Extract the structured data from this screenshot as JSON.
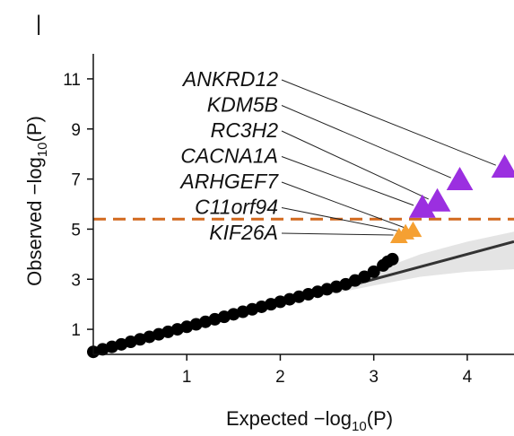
{
  "panel_letter": "|",
  "chart_data": {
    "type": "scatter",
    "title": "",
    "xlabel": {
      "main": "Expected  −log",
      "sub": "10",
      "tail": "(P)"
    },
    "ylabel": {
      "main": "Observed  −log",
      "sub": "10",
      "tail": "(P)"
    },
    "xlim": [
      0,
      4.5
    ],
    "ylim": [
      0,
      12
    ],
    "x_ticks": [
      1,
      2,
      3,
      4
    ],
    "y_ticks": [
      1,
      3,
      5,
      7,
      9,
      11
    ],
    "grid": false,
    "significance_threshold": 5.4,
    "colors": {
      "null_points": "#000000",
      "suggestive": "#f5a032",
      "significant": "#9b2fe0",
      "threshold_line": "#d2691e",
      "expected_line": "#333333",
      "confidence_band": "#e4e4e4"
    },
    "labeled_genes": [
      {
        "name": "ANKRD12",
        "x": 4.4,
        "y": 7.45,
        "group": "significant"
      },
      {
        "name": "KDM5B",
        "x": 3.92,
        "y": 6.95,
        "group": "significant"
      },
      {
        "name": "RC3H2",
        "x": 3.68,
        "y": 6.1,
        "group": "significant"
      },
      {
        "name": "CACNA1A",
        "x": 3.52,
        "y": 5.85,
        "group": "significant"
      },
      {
        "name": "ARHGEF7",
        "x": 3.42,
        "y": 4.95,
        "group": "suggestive"
      },
      {
        "name": "C11orf94",
        "x": 3.34,
        "y": 4.85,
        "group": "suggestive"
      },
      {
        "name": "KIF26A",
        "x": 3.27,
        "y": 4.7,
        "group": "suggestive"
      }
    ],
    "null_points": [
      [
        0.0,
        0.1
      ],
      [
        0.1,
        0.2
      ],
      [
        0.2,
        0.3
      ],
      [
        0.3,
        0.4
      ],
      [
        0.4,
        0.5
      ],
      [
        0.5,
        0.6
      ],
      [
        0.6,
        0.7
      ],
      [
        0.7,
        0.8
      ],
      [
        0.8,
        0.9
      ],
      [
        0.9,
        1.0
      ],
      [
        1.0,
        1.1
      ],
      [
        1.1,
        1.2
      ],
      [
        1.2,
        1.3
      ],
      [
        1.3,
        1.4
      ],
      [
        1.4,
        1.5
      ],
      [
        1.5,
        1.6
      ],
      [
        1.6,
        1.7
      ],
      [
        1.7,
        1.8
      ],
      [
        1.8,
        1.9
      ],
      [
        1.9,
        2.0
      ],
      [
        2.0,
        2.1
      ],
      [
        2.1,
        2.2
      ],
      [
        2.2,
        2.3
      ],
      [
        2.3,
        2.4
      ],
      [
        2.4,
        2.5
      ],
      [
        2.5,
        2.6
      ],
      [
        2.6,
        2.7
      ],
      [
        2.7,
        2.8
      ],
      [
        2.8,
        2.95
      ],
      [
        2.9,
        3.1
      ],
      [
        3.0,
        3.3
      ],
      [
        3.1,
        3.55
      ],
      [
        3.15,
        3.7
      ],
      [
        3.2,
        3.8
      ]
    ],
    "expected_line": [
      [
        0.0,
        0.0
      ],
      [
        4.5,
        4.5
      ]
    ],
    "confidence_band": {
      "upper": [
        [
          2.4,
          2.5
        ],
        [
          3.0,
          3.3
        ],
        [
          3.5,
          4.0
        ],
        [
          4.0,
          4.5
        ],
        [
          4.5,
          4.9
        ]
      ],
      "lower": [
        [
          2.4,
          2.3
        ],
        [
          3.0,
          2.75
        ],
        [
          3.5,
          3.1
        ],
        [
          4.0,
          3.3
        ],
        [
          4.5,
          3.4
        ]
      ]
    }
  }
}
